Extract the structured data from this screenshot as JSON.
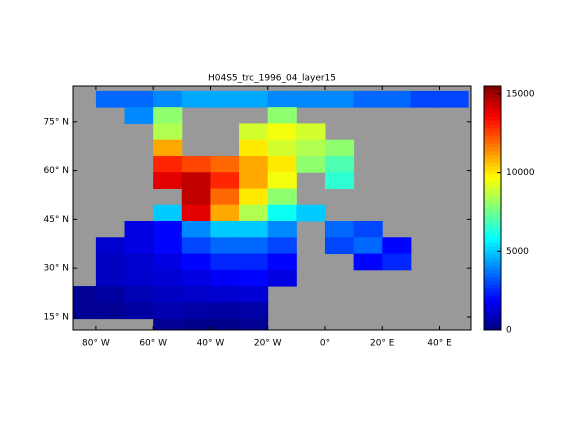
{
  "chart_data": {
    "type": "heatmap",
    "title": "H04S5_trc_1996_04_layer15",
    "colormap": "jet",
    "x": [
      -85,
      -75,
      -65,
      -55,
      -45,
      -35,
      -25,
      -15,
      -5,
      5,
      15,
      25,
      35,
      45
    ],
    "y": [
      82,
      77,
      72,
      67,
      62,
      57,
      52,
      47,
      42,
      37,
      32,
      27,
      22,
      17,
      12
    ],
    "values": [
      [
        null,
        3500,
        3500,
        4000,
        4500,
        4500,
        4500,
        4000,
        4000,
        4000,
        3500,
        3500,
        3000,
        3000
      ],
      [
        null,
        null,
        4000,
        8000,
        null,
        null,
        null,
        8000,
        null,
        null,
        null,
        null,
        null,
        null
      ],
      [
        null,
        null,
        null,
        8500,
        null,
        null,
        9000,
        9500,
        9000,
        null,
        null,
        null,
        null,
        null
      ],
      [
        null,
        null,
        null,
        11000,
        null,
        null,
        10000,
        9000,
        8500,
        8000,
        null,
        null,
        null,
        null
      ],
      [
        null,
        null,
        null,
        13000,
        12500,
        12000,
        11000,
        10000,
        8000,
        7000,
        null,
        null,
        null,
        null
      ],
      [
        null,
        null,
        null,
        14000,
        14500,
        13000,
        11000,
        9500,
        null,
        6500,
        null,
        null,
        null,
        null
      ],
      [
        null,
        null,
        null,
        null,
        14500,
        12000,
        10000,
        8000,
        null,
        null,
        null,
        null,
        null,
        null
      ],
      [
        null,
        null,
        null,
        5000,
        14000,
        11000,
        8500,
        6000,
        5000,
        null,
        null,
        null,
        null,
        null
      ],
      [
        null,
        null,
        1500,
        2000,
        4000,
        5000,
        5000,
        4000,
        null,
        3500,
        3000,
        null,
        null,
        null
      ],
      [
        null,
        1200,
        1500,
        2000,
        3000,
        3500,
        3500,
        3000,
        null,
        3000,
        3500,
        2000,
        null,
        null
      ],
      [
        null,
        1000,
        1200,
        1500,
        2000,
        2500,
        2500,
        2000,
        null,
        null,
        2000,
        2500,
        null,
        null
      ],
      [
        null,
        1000,
        1200,
        1300,
        1500,
        1800,
        2000,
        1500,
        null,
        null,
        null,
        null,
        null,
        null
      ],
      [
        300,
        500,
        800,
        1000,
        1100,
        1200,
        1300,
        null,
        null,
        null,
        null,
        null,
        null,
        null
      ],
      [
        300,
        300,
        500,
        700,
        600,
        500,
        600,
        null,
        null,
        null,
        null,
        null,
        null,
        null
      ],
      [
        null,
        null,
        null,
        300,
        200,
        200,
        300,
        null,
        null,
        null,
        null,
        null,
        null,
        null
      ]
    ],
    "xlim": [
      -88,
      51
    ],
    "ylim": [
      11,
      86
    ],
    "xticks": [
      {
        "value": -80,
        "label": "80° W"
      },
      {
        "value": -60,
        "label": "60° W"
      },
      {
        "value": -40,
        "label": "40° W"
      },
      {
        "value": -20,
        "label": "20° W"
      },
      {
        "value": 0,
        "label": "0°"
      },
      {
        "value": 20,
        "label": "20° E"
      },
      {
        "value": 40,
        "label": "40° E"
      }
    ],
    "yticks": [
      {
        "value": 15,
        "label": "15° N"
      },
      {
        "value": 30,
        "label": "30° N"
      },
      {
        "value": 45,
        "label": "45° N"
      },
      {
        "value": 60,
        "label": "60° N"
      },
      {
        "value": 75,
        "label": "75° N"
      }
    ],
    "clim": [
      0,
      15500
    ],
    "cticks": [
      0,
      5000,
      10000,
      15000
    ]
  }
}
